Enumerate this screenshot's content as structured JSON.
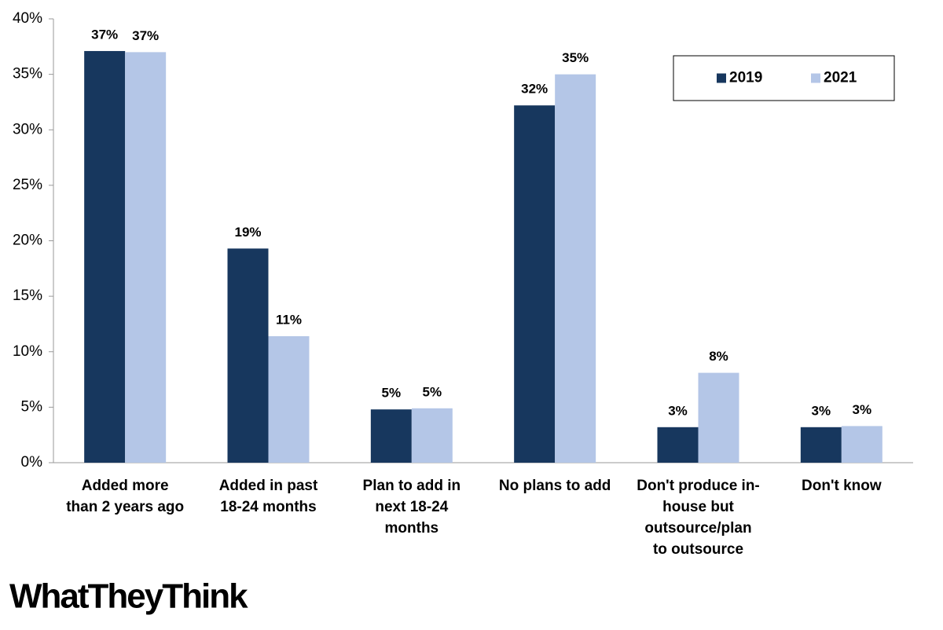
{
  "chart_data": {
    "type": "bar",
    "categories": [
      [
        "Added more",
        "than 2 years ago"
      ],
      [
        "Added in past",
        "18-24 months"
      ],
      [
        "Plan to add in",
        "next 18-24",
        "months"
      ],
      [
        "No plans to add"
      ],
      [
        "Don't produce in-",
        "house but",
        "outsource/plan",
        "to outsource"
      ],
      [
        "Don't know"
      ]
    ],
    "series": [
      {
        "name": "2019",
        "color": "#17375e",
        "values": [
          37.1,
          19.3,
          4.8,
          32.2,
          3.2,
          3.2
        ],
        "value_labels": [
          "37%",
          "19%",
          "5%",
          "32%",
          "3%",
          "3%"
        ]
      },
      {
        "name": "2021",
        "color": "#b4c6e7",
        "values": [
          37.0,
          11.4,
          4.9,
          35.0,
          8.1,
          3.3
        ],
        "value_labels": [
          "37%",
          "11%",
          "5%",
          "35%",
          "8%",
          "3%"
        ]
      }
    ],
    "ylim": [
      0,
      40
    ],
    "yticks": [
      {
        "value": 0,
        "label": "0%"
      },
      {
        "value": 5,
        "label": "5%"
      },
      {
        "value": 10,
        "label": "10%"
      },
      {
        "value": 15,
        "label": "15%"
      },
      {
        "value": 20,
        "label": "20%"
      },
      {
        "value": 25,
        "label": "25%"
      },
      {
        "value": 30,
        "label": "30%"
      },
      {
        "value": 35,
        "label": "35%"
      },
      {
        "value": 40,
        "label": "40%"
      }
    ],
    "legend": "top-right",
    "logo": "WhatTheyThink"
  }
}
